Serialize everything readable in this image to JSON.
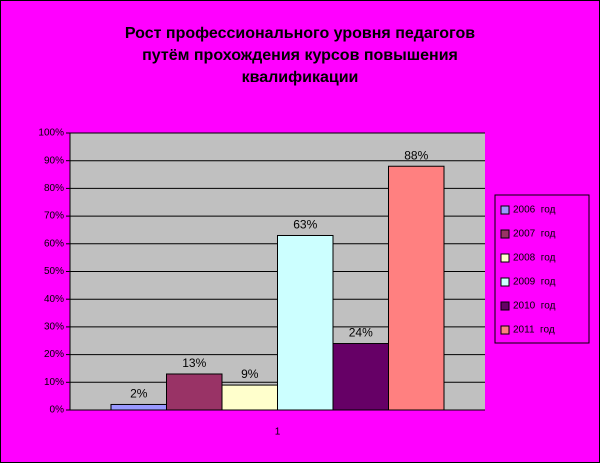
{
  "chart_data": {
    "type": "bar",
    "title": [
      "Рост профессионального уровня педагогов",
      "путём прохождения курсов повышения",
      "квалификации"
    ],
    "categories": [
      "1"
    ],
    "series": [
      {
        "name": "2006  год",
        "color": "#9999ff",
        "values": [
          2
        ],
        "value_labels": [
          "2%"
        ]
      },
      {
        "name": "2007  год",
        "color": "#993366",
        "values": [
          13
        ],
        "value_labels": [
          "13%"
        ]
      },
      {
        "name": "2008  год",
        "color": "#ffffcc",
        "values": [
          9
        ],
        "value_labels": [
          "9%"
        ]
      },
      {
        "name": "2009  год",
        "color": "#ccffff",
        "values": [
          63
        ],
        "value_labels": [
          "63%"
        ]
      },
      {
        "name": "2010  год",
        "color": "#660066",
        "values": [
          24
        ],
        "value_labels": [
          "24%"
        ]
      },
      {
        "name": "2011  год",
        "color": "#ff8080",
        "values": [
          88
        ],
        "value_labels": [
          "88%"
        ]
      }
    ],
    "ylim": [
      0,
      100
    ],
    "yticks": [
      {
        "value": 0,
        "label": "0%"
      },
      {
        "value": 10,
        "label": "10%"
      },
      {
        "value": 20,
        "label": "20%"
      },
      {
        "value": 30,
        "label": "30%"
      },
      {
        "value": 40,
        "label": "40%"
      },
      {
        "value": 50,
        "label": "50%"
      },
      {
        "value": 60,
        "label": "60%"
      },
      {
        "value": 70,
        "label": "70%"
      },
      {
        "value": 80,
        "label": "80%"
      },
      {
        "value": 90,
        "label": "90%"
      },
      {
        "value": 100,
        "label": "100%"
      }
    ],
    "grid": true,
    "legend": "right"
  }
}
